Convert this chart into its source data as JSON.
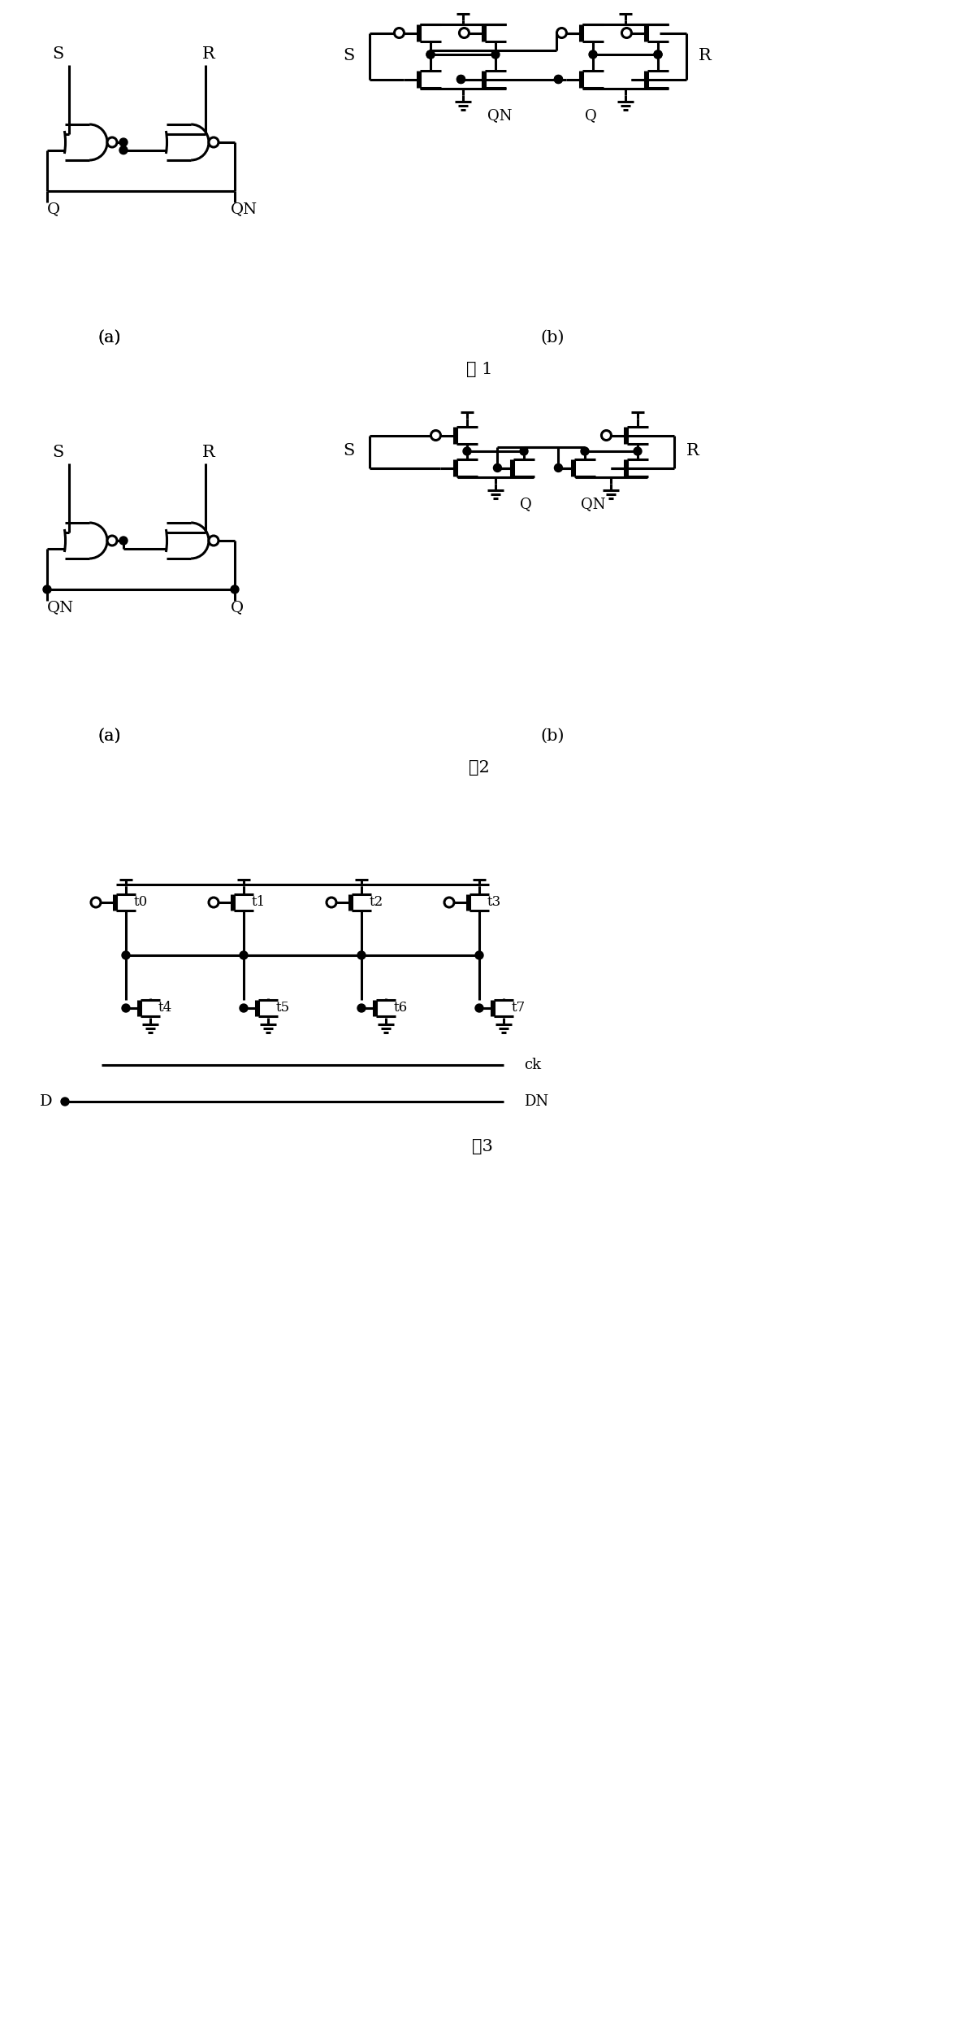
{
  "fig1_label": "图 1",
  "fig2_label": "图2",
  "fig3_label": "图3",
  "lw": 2.2,
  "dot_r": 5,
  "oc_r": 6
}
